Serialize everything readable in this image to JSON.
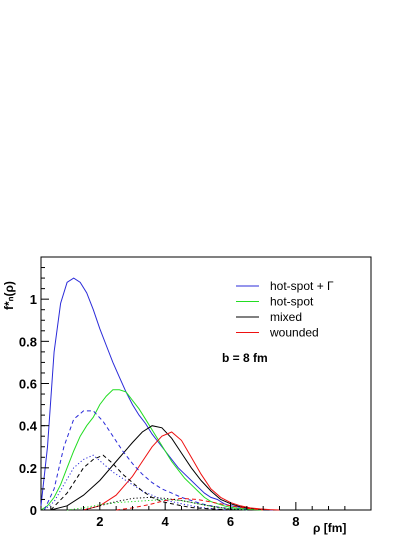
{
  "chart_data": {
    "type": "line",
    "xlabel": "ρ [fm]",
    "ylabel": "f*ₙ(ρ)",
    "xlim": [
      0.2,
      10.3
    ],
    "ylim": [
      0,
      1.2
    ],
    "x_ticks": [
      "2",
      "4",
      "6",
      "8"
    ],
    "y_ticks": [
      "0",
      "0.2",
      "0.4",
      "0.6",
      "0.8",
      "1"
    ],
    "annotation": "b = 8 fm",
    "legend_position": "top-right",
    "series": [
      {
        "name": "hot-spot + Γ",
        "color": "#2b2bd9",
        "style": "solid",
        "x": [
          0.2,
          0.4,
          0.6,
          0.8,
          1.0,
          1.2,
          1.4,
          1.6,
          1.8,
          2.0,
          2.2,
          2.4,
          2.6,
          2.8,
          3.0,
          3.2,
          3.4,
          3.6,
          3.8,
          4.0,
          4.2,
          4.4,
          4.6,
          4.8,
          5.0,
          5.2,
          5.4,
          5.6,
          5.8,
          6.0,
          6.2,
          6.4,
          6.6,
          6.8,
          7.0,
          7.3
        ],
        "y": [
          0.02,
          0.3,
          0.75,
          0.98,
          1.08,
          1.1,
          1.08,
          1.03,
          0.95,
          0.86,
          0.78,
          0.7,
          0.63,
          0.56,
          0.5,
          0.45,
          0.41,
          0.36,
          0.32,
          0.28,
          0.24,
          0.2,
          0.17,
          0.14,
          0.11,
          0.08,
          0.06,
          0.05,
          0.03,
          0.02,
          0.015,
          0.01,
          0.007,
          0.004,
          0.002,
          0.0
        ]
      },
      {
        "name": "hot-spot",
        "color": "#22dd22",
        "style": "solid",
        "x": [
          0.2,
          0.4,
          0.6,
          0.8,
          1.0,
          1.2,
          1.4,
          1.6,
          1.8,
          2.0,
          2.2,
          2.4,
          2.6,
          2.8,
          3.0,
          3.2,
          3.4,
          3.6,
          3.8,
          4.0,
          4.2,
          4.4,
          4.6,
          4.8,
          5.0,
          5.2,
          5.4,
          5.6,
          5.8,
          6.0,
          6.2,
          6.4,
          6.6,
          6.8,
          7.0
        ],
        "y": [
          0.0,
          0.02,
          0.06,
          0.12,
          0.2,
          0.28,
          0.35,
          0.4,
          0.44,
          0.5,
          0.54,
          0.57,
          0.57,
          0.56,
          0.52,
          0.48,
          0.43,
          0.38,
          0.33,
          0.28,
          0.23,
          0.19,
          0.15,
          0.12,
          0.09,
          0.06,
          0.04,
          0.03,
          0.02,
          0.013,
          0.008,
          0.005,
          0.003,
          0.001,
          0.0
        ]
      },
      {
        "name": "mixed",
        "color": "#000000",
        "style": "solid",
        "x": [
          0.5,
          1.0,
          1.5,
          2.0,
          2.5,
          3.0,
          3.3,
          3.6,
          3.9,
          4.2,
          4.5,
          4.8,
          5.1,
          5.4,
          5.7,
          6.0,
          6.3,
          6.6,
          6.9,
          7.2
        ],
        "y": [
          0.0,
          0.02,
          0.07,
          0.14,
          0.23,
          0.32,
          0.37,
          0.4,
          0.39,
          0.34,
          0.27,
          0.2,
          0.14,
          0.09,
          0.05,
          0.03,
          0.015,
          0.007,
          0.003,
          0.0
        ]
      },
      {
        "name": "wounded",
        "color": "#ee1111",
        "style": "solid",
        "x": [
          1.5,
          2.0,
          2.5,
          3.0,
          3.3,
          3.6,
          3.9,
          4.2,
          4.5,
          4.8,
          5.1,
          5.4,
          5.7,
          6.0,
          6.3,
          6.6,
          6.9,
          7.2,
          7.5
        ],
        "y": [
          0.0,
          0.02,
          0.07,
          0.16,
          0.23,
          0.3,
          0.35,
          0.37,
          0.33,
          0.25,
          0.17,
          0.1,
          0.06,
          0.035,
          0.02,
          0.01,
          0.005,
          0.002,
          0.0
        ]
      },
      {
        "color": "#2b2bd9",
        "style": "dashed",
        "x": [
          0.3,
          0.6,
          0.9,
          1.2,
          1.5,
          1.8,
          2.1,
          2.4,
          2.7,
          3.0,
          3.3,
          3.6,
          3.9,
          4.2,
          4.5,
          4.8,
          5.1,
          5.4,
          5.7,
          6.0,
          6.3,
          6.6
        ],
        "y": [
          0.0,
          0.1,
          0.3,
          0.43,
          0.47,
          0.47,
          0.42,
          0.35,
          0.28,
          0.22,
          0.17,
          0.13,
          0.1,
          0.08,
          0.06,
          0.045,
          0.03,
          0.02,
          0.012,
          0.006,
          0.003,
          0.0
        ]
      },
      {
        "color": "#2b2bd9",
        "style": "dotted",
        "x": [
          0.3,
          0.6,
          0.9,
          1.2,
          1.5,
          1.8,
          2.1,
          2.4,
          2.7,
          3.0,
          3.3,
          3.6,
          3.9,
          4.2,
          4.5,
          4.8,
          5.1,
          5.4,
          5.7,
          6.0
        ],
        "y": [
          0.0,
          0.04,
          0.12,
          0.2,
          0.24,
          0.26,
          0.22,
          0.18,
          0.15,
          0.12,
          0.09,
          0.07,
          0.05,
          0.04,
          0.03,
          0.02,
          0.012,
          0.007,
          0.003,
          0.0
        ]
      },
      {
        "color": "#000000",
        "style": "dashed",
        "x": [
          0.5,
          1.0,
          1.5,
          1.8,
          2.1,
          2.4,
          2.7,
          3.0,
          3.3,
          3.6,
          3.9,
          4.2,
          4.5,
          4.8,
          5.1,
          5.4,
          5.7,
          6.0,
          6.4
        ],
        "y": [
          0.0,
          0.08,
          0.2,
          0.24,
          0.26,
          0.22,
          0.17,
          0.13,
          0.09,
          0.06,
          0.04,
          0.03,
          0.02,
          0.012,
          0.008,
          0.005,
          0.003,
          0.001,
          0.0
        ]
      },
      {
        "color": "#22dd22",
        "style": "dotted",
        "x": [
          1.0,
          1.5,
          2.0,
          2.5,
          3.0,
          3.5,
          4.0,
          4.5,
          5.0,
          5.5,
          6.0,
          6.5
        ],
        "y": [
          0.0,
          0.01,
          0.025,
          0.035,
          0.04,
          0.045,
          0.05,
          0.045,
          0.03,
          0.015,
          0.005,
          0.0
        ]
      },
      {
        "color": "#ee1111",
        "style": "dashed",
        "x": [
          2.5,
          3.0,
          3.5,
          4.0,
          4.5,
          5.0,
          5.5,
          6.0,
          6.5,
          7.0
        ],
        "y": [
          0.0,
          0.01,
          0.025,
          0.045,
          0.055,
          0.05,
          0.035,
          0.02,
          0.008,
          0.0
        ]
      },
      {
        "color": "#000000",
        "style": "dotted",
        "x": [
          1.5,
          2.0,
          2.5,
          3.0,
          3.5,
          4.0,
          4.5,
          5.0,
          5.5,
          6.0,
          6.5
        ],
        "y": [
          0.0,
          0.02,
          0.04,
          0.055,
          0.06,
          0.055,
          0.045,
          0.03,
          0.015,
          0.005,
          0.0
        ]
      }
    ]
  }
}
